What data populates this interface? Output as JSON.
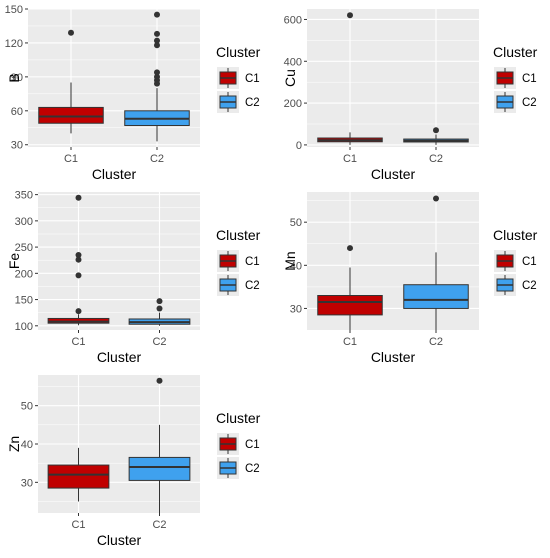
{
  "chart_data": [
    {
      "type": "boxplot",
      "xlabel": "Cluster",
      "ylabel": "B",
      "ylim": [
        28,
        150
      ],
      "yticks": [
        30,
        60,
        90,
        120,
        150
      ],
      "categories": [
        "C1",
        "C2"
      ],
      "boxes": [
        {
          "category": "C1",
          "lower_whisker": 40,
          "q1": 49,
          "median": 55,
          "q3": 63,
          "upper_whisker": 85,
          "outliers": [
            129
          ]
        },
        {
          "category": "C2",
          "lower_whisker": 33,
          "q1": 47,
          "median": 53,
          "q3": 60,
          "upper_whisker": 80,
          "outliers": [
            84,
            87,
            90,
            94,
            118,
            122,
            128,
            145
          ]
        }
      ],
      "legend": {
        "title": "Cluster",
        "entries": [
          "C1",
          "C2"
        ],
        "position": "right"
      }
    },
    {
      "type": "boxplot",
      "xlabel": "Cluster",
      "ylabel": "Cu",
      "ylim": [
        -10,
        650
      ],
      "yticks": [
        0,
        200,
        400,
        600
      ],
      "categories": [
        "C1",
        "C2"
      ],
      "boxes": [
        {
          "category": "C1",
          "lower_whisker": 0,
          "q1": 15,
          "median": 22,
          "q3": 33,
          "upper_whisker": 60,
          "outliers": [
            620
          ]
        },
        {
          "category": "C2",
          "lower_whisker": 0,
          "q1": 14,
          "median": 20,
          "q3": 28,
          "upper_whisker": 50,
          "outliers": [
            70
          ]
        }
      ],
      "legend": {
        "title": "Cluster",
        "entries": [
          "C1",
          "C2"
        ],
        "position": "right"
      }
    },
    {
      "type": "boxplot",
      "xlabel": "Cluster",
      "ylabel": "Fe",
      "ylim": [
        92,
        355
      ],
      "yticks": [
        100,
        150,
        200,
        250,
        300,
        350
      ],
      "categories": [
        "C1",
        "C2"
      ],
      "boxes": [
        {
          "category": "C1",
          "lower_whisker": 101,
          "q1": 105,
          "median": 108,
          "q3": 114,
          "upper_whisker": 122,
          "outliers": [
            128,
            196,
            226,
            235,
            344
          ]
        },
        {
          "category": "C2",
          "lower_whisker": 100,
          "q1": 103,
          "median": 107,
          "q3": 113,
          "upper_whisker": 125,
          "outliers": [
            133,
            147
          ]
        }
      ],
      "legend": {
        "title": "Cluster",
        "entries": [
          "C1",
          "C2"
        ],
        "position": "right"
      }
    },
    {
      "type": "boxplot",
      "xlabel": "Cluster",
      "ylabel": "Mn",
      "ylim": [
        25,
        57
      ],
      "yticks": [
        30,
        40,
        50
      ],
      "categories": [
        "C1",
        "C2"
      ],
      "boxes": [
        {
          "category": "C1",
          "lower_whisker": 25,
          "q1": 28.5,
          "median": 31.5,
          "q3": 33,
          "upper_whisker": 39.5,
          "outliers": [
            44
          ]
        },
        {
          "category": "C2",
          "lower_whisker": 25,
          "q1": 30,
          "median": 32,
          "q3": 35.5,
          "upper_whisker": 43,
          "outliers": [
            55.5
          ]
        }
      ],
      "legend": {
        "title": "Cluster",
        "entries": [
          "C1",
          "C2"
        ],
        "position": "right"
      }
    },
    {
      "type": "boxplot",
      "xlabel": "Cluster",
      "ylabel": "Zn",
      "ylim": [
        22,
        58
      ],
      "yticks": [
        30,
        40,
        50
      ],
      "categories": [
        "C1",
        "C2"
      ],
      "boxes": [
        {
          "category": "C1",
          "lower_whisker": 25,
          "q1": 28.5,
          "median": 32,
          "q3": 34.5,
          "upper_whisker": 39,
          "outliers": []
        },
        {
          "category": "C2",
          "lower_whisker": 22,
          "q1": 30.5,
          "median": 34,
          "q3": 36.5,
          "upper_whisker": 45,
          "outliers": [
            56.5
          ]
        }
      ],
      "legend": {
        "title": "Cluster",
        "entries": [
          "C1",
          "C2"
        ],
        "position": "right"
      }
    }
  ],
  "colors": {
    "C1": "#c00000",
    "C2": "#3fa1ee",
    "panel": "#ebebeb",
    "grid": "#ffffff",
    "outline": "#333333"
  }
}
